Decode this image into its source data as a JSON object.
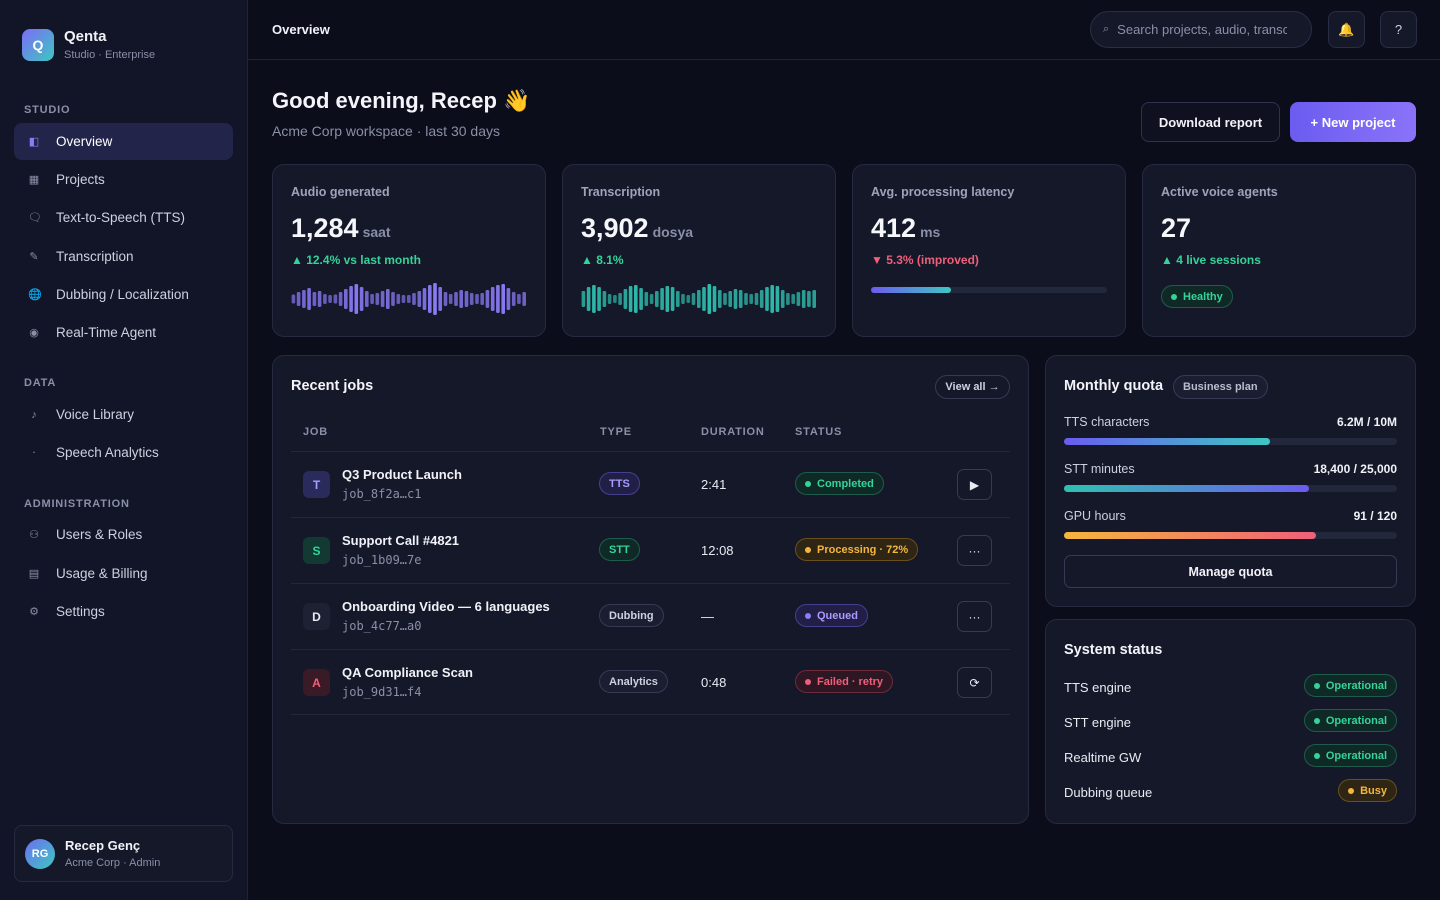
{
  "brand": {
    "logo_letter": "Q",
    "name": "Qenta",
    "subtitle": "Studio · Enterprise"
  },
  "sidebar": {
    "sections": [
      {
        "label": "STUDIO",
        "items": [
          {
            "label": "Overview",
            "icon": "overview-icon",
            "glyph": "◧",
            "active": true
          },
          {
            "label": "Projects",
            "icon": "projects-icon",
            "glyph": "▦"
          },
          {
            "label": "Text-to-Speech (TTS)",
            "icon": "speech-bubble-icon",
            "glyph": "🗨"
          },
          {
            "label": "Transcription",
            "icon": "pen-icon",
            "glyph": "✎"
          },
          {
            "label": "Dubbing / Localization",
            "icon": "globe-icon",
            "glyph": "🌐"
          },
          {
            "label": "Real-Time Agent",
            "icon": "radio-icon",
            "glyph": "◉"
          }
        ]
      },
      {
        "label": "DATA",
        "items": [
          {
            "label": "Voice Library",
            "icon": "music-note-icon",
            "glyph": "♪"
          },
          {
            "label": "Speech Analytics",
            "icon": "analytics-icon",
            "glyph": "‧"
          }
        ]
      },
      {
        "label": "ADMINISTRATION",
        "items": [
          {
            "label": "Users & Roles",
            "icon": "users-icon",
            "glyph": "⚇"
          },
          {
            "label": "Usage & Billing",
            "icon": "billing-icon",
            "glyph": "▤"
          },
          {
            "label": "Settings",
            "icon": "gear-icon",
            "glyph": "⚙"
          }
        ]
      }
    ]
  },
  "user": {
    "initials": "RG",
    "name": "Recep Genç",
    "role": "Acme Corp · Admin"
  },
  "topbar": {
    "title": "Overview",
    "search_placeholder": "Search projects, audio, transcripts",
    "search_icon": "⌕",
    "bell_icon": "🔔",
    "help_icon": "?"
  },
  "header": {
    "greeting": "Good evening, Recep 👋",
    "subtitle": "Acme Corp workspace · last 30 days",
    "download_label": "Download report",
    "new_project_label": "+ New project"
  },
  "stats": [
    {
      "label": "Audio generated",
      "value": "1,284",
      "unit": "saat",
      "delta": "▲ 12.4% vs last month",
      "delta_dir": "up",
      "visual": "wave",
      "wave_color": "#8b7bf7",
      "wave": [
        9,
        14,
        18,
        22,
        14,
        16,
        10,
        8,
        9,
        14,
        20,
        26,
        30,
        24,
        16,
        10,
        12,
        16,
        20,
        14,
        10,
        8,
        8,
        12,
        16,
        22,
        28,
        32,
        24,
        14,
        10,
        14,
        18,
        16,
        12,
        10,
        12,
        18,
        24,
        28,
        30,
        22,
        14,
        10,
        14
      ]
    },
    {
      "label": "Transcription",
      "value": "3,902",
      "unit": "dosya",
      "delta": "▲ 8.1%",
      "delta_dir": "up",
      "visual": "wave",
      "wave_color": "#2fc1b0",
      "wave": [
        16,
        24,
        28,
        24,
        16,
        10,
        8,
        12,
        20,
        26,
        28,
        22,
        14,
        10,
        16,
        22,
        26,
        24,
        16,
        10,
        8,
        12,
        18,
        24,
        30,
        26,
        18,
        12,
        16,
        20,
        18,
        12,
        10,
        12,
        18,
        24,
        28,
        26,
        18,
        12,
        10,
        14,
        18,
        16,
        18
      ]
    },
    {
      "label": "Avg. processing latency",
      "value": "412",
      "unit": "ms",
      "delta": "▼ 5.3% (improved)",
      "delta_dir": "down",
      "visual": "bar",
      "progress": 0.34
    },
    {
      "label": "Active voice agents",
      "value": "27",
      "unit": "",
      "delta": "▲ 4 live sessions",
      "delta_dir": "up",
      "visual": "pill",
      "pill_label": "Healthy"
    }
  ],
  "jobs": {
    "title": "Recent jobs",
    "view_all": "View all →",
    "columns": [
      "JOB",
      "TYPE",
      "DURATION",
      "STATUS"
    ],
    "rows": [
      {
        "letter": "T",
        "badge_bg": "#2b2a5c",
        "badge_fg": "#a99bfb",
        "name": "Q3 Product Launch",
        "id": "job_8f2a…c1",
        "type": "TTS",
        "type_style": "pill-purple",
        "duration": "2:41",
        "status": "Completed",
        "status_style": "pill-green",
        "action": "▶",
        "action_name": "play-icon"
      },
      {
        "letter": "S",
        "badge_bg": "#123a33",
        "badge_fg": "#34d399",
        "name": "Support Call #4821",
        "id": "job_1b09…7e",
        "type": "STT",
        "type_style": "pill-teal",
        "duration": "12:08",
        "status": "Processing · 72%",
        "status_style": "pill-amber",
        "action": "···",
        "action_name": "more-icon"
      },
      {
        "letter": "D",
        "badge_bg": "#1e2133",
        "badge_fg": "#e8eaf2",
        "name": "Onboarding Video — 6 languages",
        "id": "job_4c77…a0",
        "type": "Dubbing",
        "type_style": "pill-gray",
        "duration": "—",
        "status": "Queued",
        "status_style": "pill-purple",
        "action": "···",
        "action_name": "more-icon"
      },
      {
        "letter": "A",
        "badge_bg": "#3a1a26",
        "badge_fg": "#f05f7a",
        "name": "QA Compliance Scan",
        "id": "job_9d31…f4",
        "type": "Analytics",
        "type_style": "pill-gray",
        "duration": "0:48",
        "status": "Failed · retry",
        "status_style": "pill-red",
        "action": "⟳",
        "action_name": "retry-icon"
      }
    ]
  },
  "quota": {
    "title": "Monthly quota",
    "plan": "Business plan",
    "items": [
      {
        "label": "TTS characters",
        "value": "6.2M / 10M",
        "progress": 0.62,
        "gradient": "linear-gradient(90deg,#6b5cf0,#3ec7c2)"
      },
      {
        "label": "STT minutes",
        "value": "18,400 / 25,000",
        "progress": 0.736,
        "gradient": "linear-gradient(90deg,#2fc1b0,#6b5cf0)"
      },
      {
        "label": "GPU hours",
        "value": "91 / 120",
        "progress": 0.758,
        "gradient": "linear-gradient(90deg,#f5b63d,#f05f7a)"
      }
    ],
    "manage_label": "Manage quota"
  },
  "system": {
    "title": "System status",
    "items": [
      {
        "label": "TTS engine",
        "status": "Operational",
        "style": "pill-green"
      },
      {
        "label": "STT engine",
        "status": "Operational",
        "style": "pill-green"
      },
      {
        "label": "Realtime GW",
        "status": "Operational",
        "style": "pill-green"
      },
      {
        "label": "Dubbing queue",
        "status": "Busy",
        "style": "pill-amber"
      }
    ]
  }
}
